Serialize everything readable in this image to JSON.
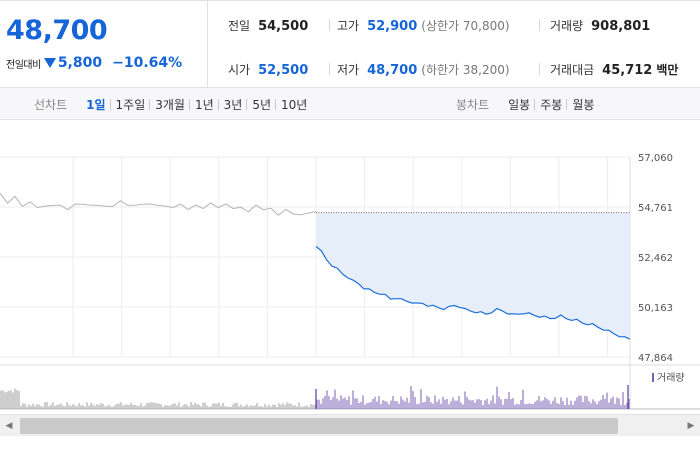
{
  "summary": {
    "current_price": "48,700",
    "change_label": "전일대비",
    "change_value": "5,800",
    "change_percent": "−10.64%"
  },
  "stats": {
    "prev_close": {
      "label": "전일",
      "value": "54,500"
    },
    "open": {
      "label": "시가",
      "value": "52,500"
    },
    "high": {
      "label": "고가",
      "value": "52,900",
      "sub": "(상한가 70,800)"
    },
    "low": {
      "label": "저가",
      "value": "48,700",
      "sub": "(하한가 38,200)"
    },
    "volume": {
      "label": "거래량",
      "value": "908,801"
    },
    "trade_amount": {
      "label": "거래대금",
      "value": "45,712",
      "unit": "백만"
    }
  },
  "toolbar": {
    "line_chart_title": "선차트",
    "line_periods": [
      {
        "label": "1일",
        "active": true
      },
      {
        "label": "1주일",
        "active": false
      },
      {
        "label": "3개월",
        "active": false
      },
      {
        "label": "1년",
        "active": false
      },
      {
        "label": "3년",
        "active": false
      },
      {
        "label": "5년",
        "active": false
      },
      {
        "label": "10년",
        "active": false
      }
    ],
    "candle_chart_title": "봉차트",
    "candle_periods": [
      {
        "label": "일봉",
        "active": false
      },
      {
        "label": "주봉",
        "active": false
      },
      {
        "label": "월봉",
        "active": false
      }
    ]
  },
  "chart_data": {
    "type": "line",
    "y_ticks": [
      "57,060",
      "54,761",
      "52,462",
      "50,163",
      "47,864"
    ],
    "ylim": [
      47864,
      57060
    ],
    "prev_close_value": 54500,
    "volume_legend": "거래량",
    "colors": {
      "prev_day_line": "#b5b5b5",
      "today_line": "#1e6fd9",
      "today_fill": "#e6eefa",
      "volume": "#7a5fb4"
    },
    "series": [
      {
        "values_prev_day": [
          55350,
          55000,
          55200,
          54850,
          54950,
          54800,
          54750,
          54900,
          54800,
          54700,
          54850,
          54950,
          54800,
          54900,
          54750,
          54850,
          55000,
          54900,
          54800,
          54950,
          54850,
          54900,
          54750,
          54800,
          54850,
          54700,
          54800,
          54750,
          54900,
          54800,
          54850,
          54750,
          54700,
          54600,
          54800,
          54700,
          54650,
          54450,
          54600,
          54500,
          54350,
          54550,
          54500
        ]
      },
      {
        "values": [
          53000,
          52700,
          52350,
          52100,
          51900,
          51700,
          51550,
          51350,
          51250,
          51050,
          50950,
          50850,
          50800,
          50700,
          50550,
          50600,
          50500,
          50450,
          50400,
          50300,
          50350,
          50250,
          50200,
          50150,
          50100,
          50150,
          50250,
          50200,
          50050,
          50000,
          49950,
          49900,
          49850,
          49950,
          50050,
          50000,
          49900,
          49800,
          49850,
          49900,
          49850,
          49800,
          49750,
          49700,
          49650,
          49700,
          49750,
          49650,
          49600,
          49550,
          49450,
          49400,
          49350,
          49250,
          49150,
          49050,
          48950,
          48850,
          48750,
          48700
        ]
      }
    ]
  }
}
